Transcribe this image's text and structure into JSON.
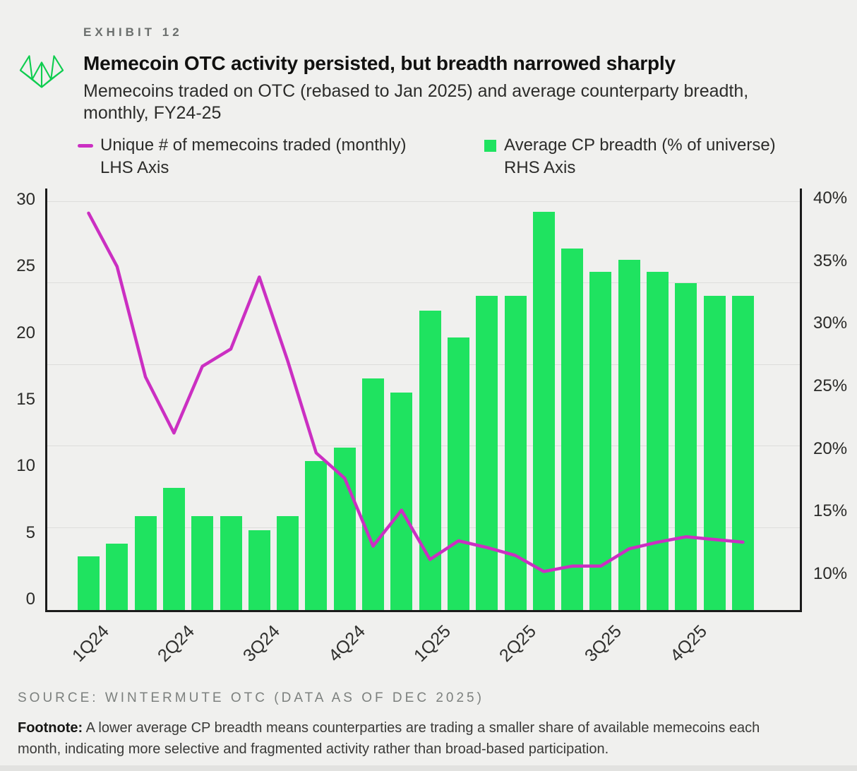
{
  "header": {
    "exhibit_label": "EXHIBIT 12",
    "title": "Memecoin OTC activity persisted, but breadth narrowed sharply",
    "subtitle": "Memecoins traded on OTC (rebased to Jan 2025) and average counterparty breadth, monthly,  FY24-25"
  },
  "legend": {
    "line_series": {
      "label": "Unique # of memecoins traded (monthly)",
      "axis_note": "LHS Axis",
      "color": "#cb2fc2"
    },
    "bar_series": {
      "label": "Average CP breadth (% of universe)",
      "axis_note": "RHS Axis",
      "color": "#1fe360"
    }
  },
  "chart_data": {
    "type": "bar",
    "subtype": "dual-axis bar + line combo",
    "x": [
      "2024-01",
      "2024-02",
      "2024-03",
      "2024-04",
      "2024-05",
      "2024-06",
      "2024-07",
      "2024-08",
      "2024-09",
      "2024-10",
      "2024-11",
      "2024-12",
      "2025-01",
      "2025-02",
      "2025-03",
      "2025-04",
      "2025-05",
      "2025-06",
      "2025-07",
      "2025-08",
      "2025-09",
      "2025-10",
      "2025-11",
      "2025-12"
    ],
    "x_tick_labels": [
      "1Q24",
      "2Q24",
      "3Q24",
      "4Q24",
      "1Q25",
      "2Q25",
      "3Q25",
      "4Q25"
    ],
    "series": [
      {
        "name": "Unique # of memecoins traded (monthly)",
        "type": "line",
        "axis": "left",
        "color": "#cb2fc2",
        "values": [
          29.0,
          25.0,
          16.7,
          12.5,
          17.5,
          18.8,
          24.2,
          17.9,
          11.0,
          9.1,
          4.0,
          6.7,
          3.0,
          4.4,
          3.9,
          3.3,
          2.1,
          2.5,
          2.5,
          3.8,
          4.3,
          4.7,
          4.5,
          4.3
        ]
      },
      {
        "name": "Average CP breadth (% of universe)",
        "type": "bar",
        "axis": "right",
        "color": "#1fe360",
        "values_pct": [
          11.4,
          12.4,
          14.6,
          16.9,
          14.6,
          14.6,
          13.5,
          14.6,
          19.0,
          20.1,
          25.6,
          24.5,
          31.0,
          28.9,
          32.2,
          32.2,
          38.9,
          36.0,
          34.1,
          35.1,
          34.1,
          33.2,
          32.2,
          32.2
        ]
      }
    ],
    "left_axis": {
      "ticks": [
        "0",
        "5",
        "10",
        "15",
        "20",
        "25",
        "30"
      ],
      "tick_values": [
        0,
        5,
        10,
        15,
        20,
        25,
        30
      ],
      "range": [
        -0.9,
        30.9
      ]
    },
    "right_axis": {
      "ticks": [
        "10%",
        "15%",
        "20%",
        "25%",
        "30%",
        "35%",
        "40%"
      ],
      "tick_values": [
        10,
        15,
        20,
        25,
        30,
        35,
        40
      ],
      "range_pct": [
        7.0,
        40.8
      ]
    },
    "grid": "horizontal-faint",
    "legend_position": "top"
  },
  "source": "SOURCE: WINTERMUTE OTC (DATA AS OF DEC 2025)",
  "footnote": {
    "label": "Footnote:",
    "text": " A lower average CP breadth means counterparties are trading a smaller share of available memecoins each month, indicating more selective and fragmented activity rather than broad-based participation."
  }
}
